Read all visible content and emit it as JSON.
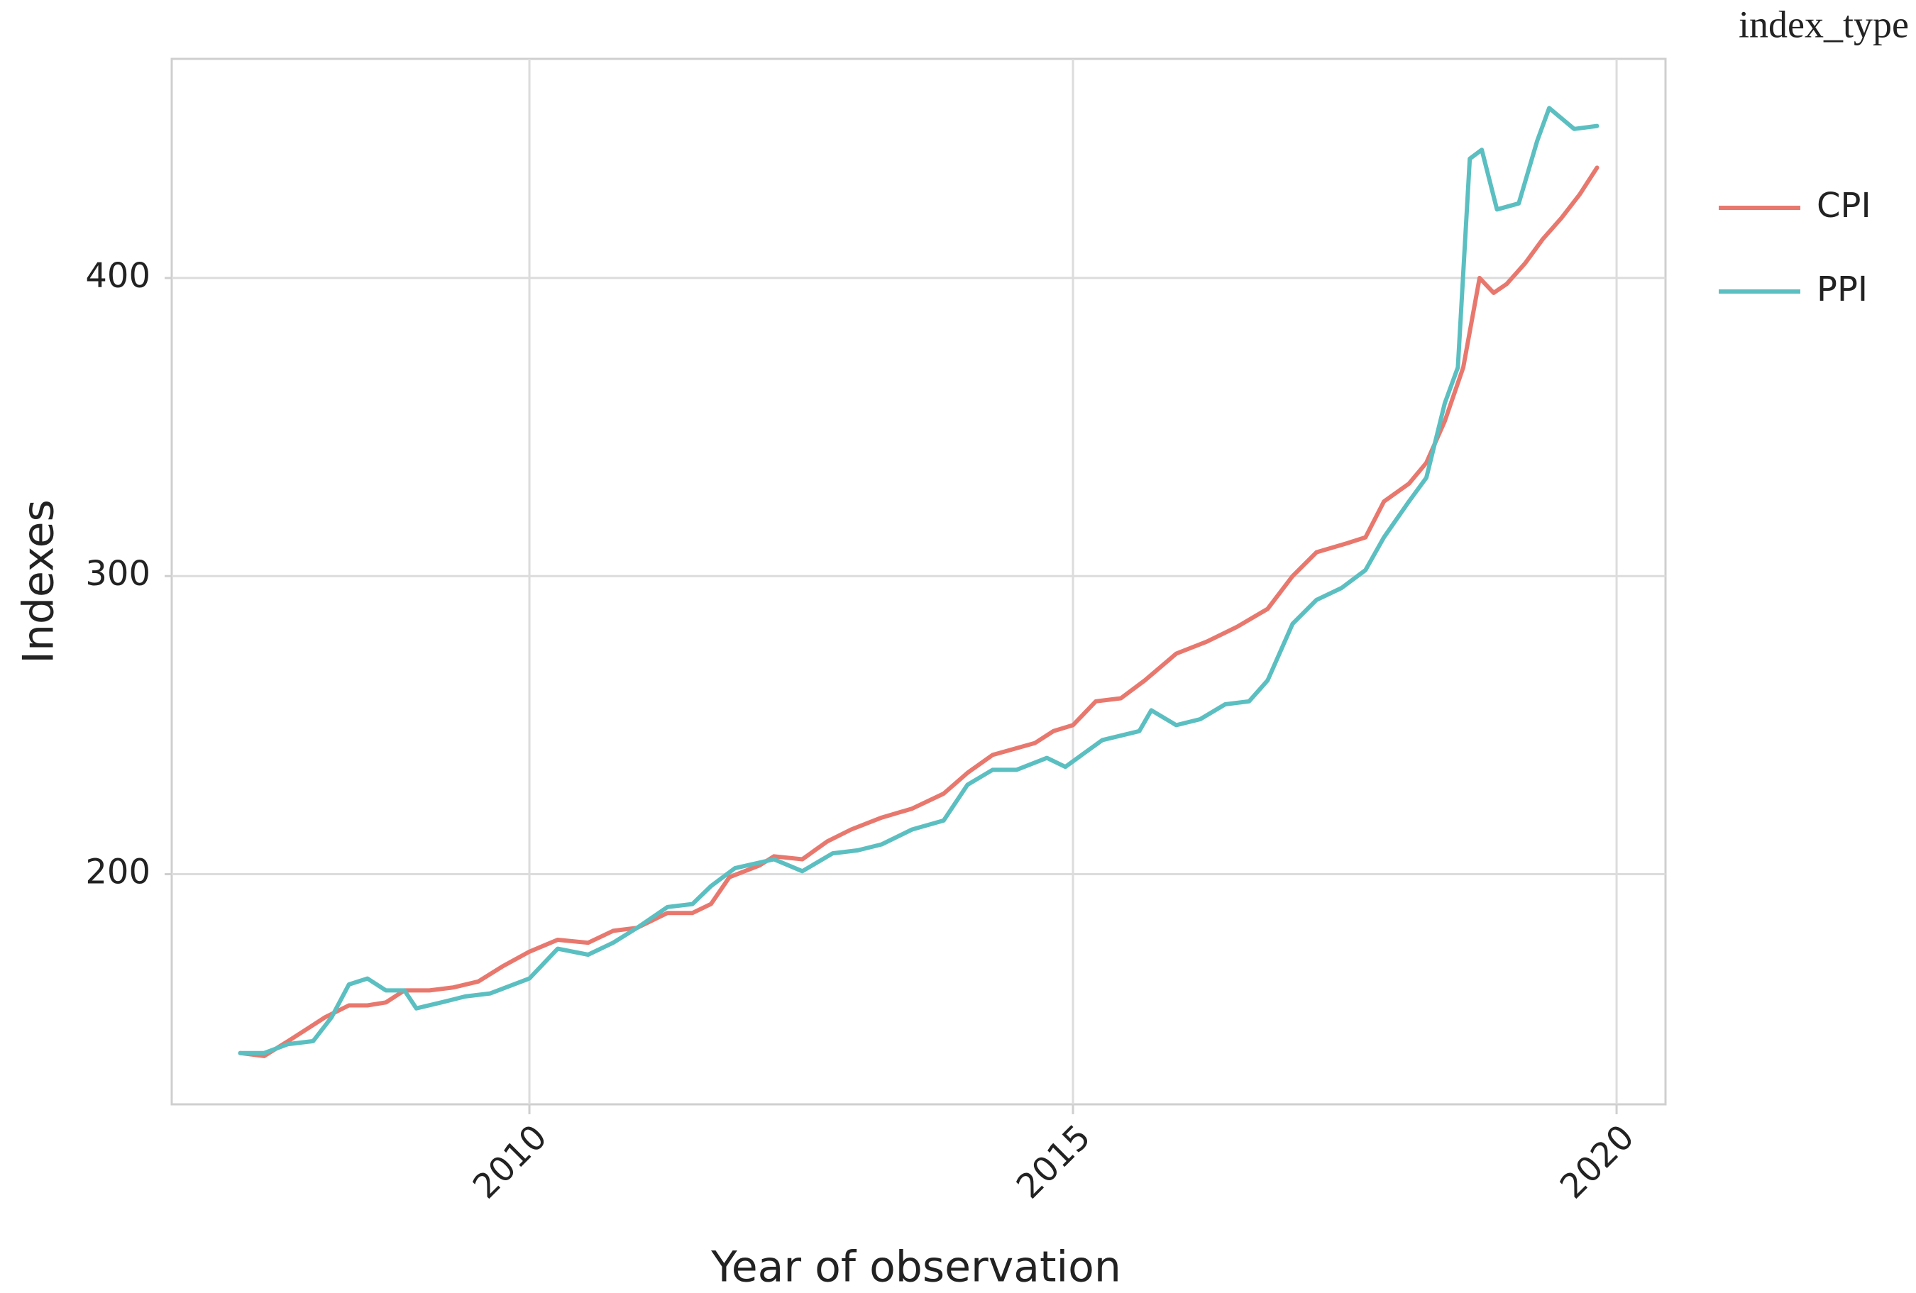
{
  "chart_data": {
    "type": "line",
    "x_label": "Year of observation",
    "y_label": "Indexes",
    "legend_title": "index_type",
    "legend_position": "right",
    "grid": true,
    "xlim": [
      2006.71,
      2020.45
    ],
    "xticks": [
      2010,
      2015,
      2020
    ],
    "ylim": [
      122.8,
      473.5
    ],
    "yticks": [
      200,
      300,
      400
    ],
    "series": [
      {
        "name": "CPI",
        "color": "#e8786e",
        "x": [
          2007.34,
          2007.56,
          2007.78,
          2007.95,
          2008.12,
          2008.34,
          2008.51,
          2008.68,
          2008.85,
          2009.08,
          2009.3,
          2009.53,
          2009.75,
          2010.0,
          2010.26,
          2010.54,
          2010.77,
          2010.99,
          2011.27,
          2011.5,
          2011.67,
          2011.84,
          2012.12,
          2012.25,
          2012.51,
          2012.74,
          2012.96,
          2013.24,
          2013.52,
          2013.81,
          2014.03,
          2014.26,
          2014.65,
          2014.82,
          2015.0,
          2015.21,
          2015.44,
          2015.66,
          2015.95,
          2016.23,
          2016.51,
          2016.79,
          2017.02,
          2017.24,
          2017.52,
          2017.69,
          2017.86,
          2018.09,
          2018.25,
          2018.42,
          2018.59,
          2018.74,
          2018.87,
          2018.99,
          2019.16,
          2019.32,
          2019.49,
          2019.66,
          2019.82
        ],
        "values": [
          140,
          139,
          144,
          148,
          152,
          156,
          156,
          157,
          161,
          161,
          162,
          164,
          169,
          174,
          178,
          177,
          181,
          182,
          187,
          187,
          190,
          199,
          203,
          206,
          205,
          211,
          215,
          219,
          222,
          227,
          234,
          240,
          244,
          248,
          250,
          258,
          259,
          265,
          274,
          278,
          283,
          289,
          300,
          308,
          311,
          313,
          325,
          331,
          338,
          352,
          370,
          400,
          395,
          398,
          405,
          413,
          420,
          428,
          437
        ]
      },
      {
        "name": "PPI",
        "color": "#5bbfc1",
        "x": [
          2007.34,
          2007.56,
          2007.78,
          2008.01,
          2008.18,
          2008.34,
          2008.51,
          2008.68,
          2008.85,
          2008.96,
          2009.19,
          2009.41,
          2009.64,
          2010.0,
          2010.26,
          2010.54,
          2010.77,
          2010.99,
          2011.27,
          2011.5,
          2011.67,
          2011.89,
          2012.25,
          2012.51,
          2012.79,
          2013.02,
          2013.24,
          2013.52,
          2013.81,
          2014.03,
          2014.26,
          2014.48,
          2014.76,
          2014.93,
          2015.27,
          2015.61,
          2015.72,
          2015.95,
          2016.17,
          2016.4,
          2016.62,
          2016.79,
          2017.02,
          2017.24,
          2017.47,
          2017.69,
          2017.86,
          2018.09,
          2018.25,
          2018.42,
          2018.54,
          2018.65,
          2018.76,
          2018.9,
          2019.1,
          2019.27,
          2019.38,
          2019.61,
          2019.82
        ],
        "values": [
          140,
          140,
          143,
          144,
          152,
          163,
          165,
          161,
          161,
          155,
          157,
          159,
          160,
          165,
          175,
          173,
          177,
          182,
          189,
          190,
          196,
          202,
          205,
          201,
          207,
          208,
          210,
          215,
          218,
          230,
          235,
          235,
          239,
          236,
          245,
          248,
          255,
          250,
          252,
          257,
          258,
          265,
          284,
          292,
          296,
          302,
          313,
          325,
          333,
          358,
          370,
          440,
          443,
          423,
          425,
          446,
          457,
          450,
          451
        ]
      }
    ]
  }
}
